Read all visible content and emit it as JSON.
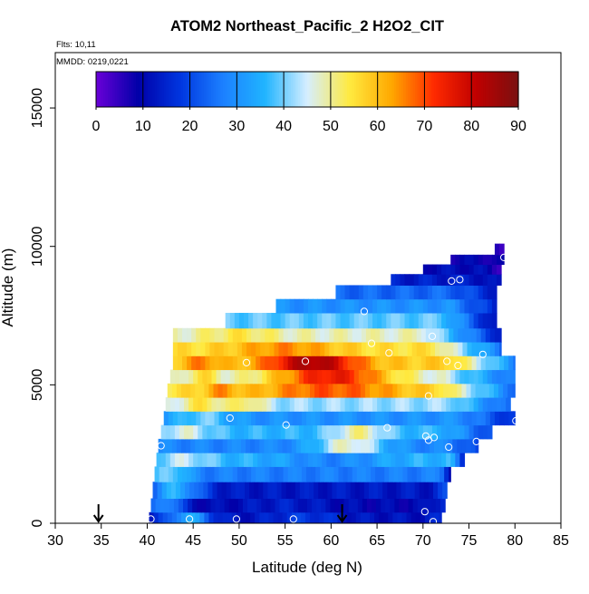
{
  "chart_data": {
    "type": "heatmap",
    "title": "ATOM2 Northeast_Pacific_2 H2O2_CIT",
    "annotations": {
      "flights": "Flts: 10,11",
      "dates": "MMDD: 0219,0221"
    },
    "xlabel": "Latitude (deg N)",
    "ylabel": "Altitude (m)",
    "xlim": [
      30,
      85
    ],
    "ylim": [
      0,
      17000
    ],
    "x_ticks": [
      30,
      35,
      40,
      45,
      50,
      55,
      60,
      65,
      70,
      75,
      80,
      85
    ],
    "y_ticks": [
      0,
      5000,
      10000,
      15000
    ],
    "colorbar": {
      "range": [
        0,
        90
      ],
      "ticks": [
        0,
        10,
        20,
        30,
        40,
        50,
        60,
        70,
        80,
        90
      ],
      "colors": [
        "#6a00d8",
        "#0000a8",
        "#0036e0",
        "#1c80ff",
        "#20b4ff",
        "#d6eeff",
        "#ffea40",
        "#ffa800",
        "#ff2a00",
        "#c00000",
        "#7a1010"
      ]
    },
    "arrow_latitudes": [
      34.7,
      61.2
    ],
    "bands": [
      {
        "alt": [
          0,
          400
        ],
        "lat": [
          40.2,
          72.0
        ],
        "base": 12,
        "bumps": [
          [
            44.5,
            22,
            2.5
          ],
          [
            57,
            6,
            4
          ]
        ],
        "tail": [
          70,
          15
        ]
      },
      {
        "alt": [
          400,
          900
        ],
        "lat": [
          40.4,
          72.4
        ],
        "base": 10,
        "bumps": [
          [
            42,
            20,
            2
          ],
          [
            55,
            4,
            5
          ]
        ],
        "tail": [
          70,
          18
        ]
      },
      {
        "alt": [
          900,
          1500
        ],
        "lat": [
          40.6,
          72.6
        ],
        "base": 13,
        "bumps": [
          [
            43,
            22,
            3
          ]
        ],
        "tail": [
          71,
          20
        ]
      },
      {
        "alt": [
          1500,
          2050
        ],
        "lat": [
          40.8,
          73.0
        ],
        "base": 27,
        "bumps": [
          [
            42.5,
            14,
            2
          ]
        ],
        "tail": [
          72,
          12
        ]
      },
      {
        "alt": [
          2050,
          2550
        ],
        "lat": [
          41.0,
          74.5
        ],
        "base": 36,
        "bumps": [
          [
            44,
            8,
            3
          ],
          [
            60,
            -8,
            6
          ]
        ],
        "tail": [
          73,
          14
        ]
      },
      {
        "alt": [
          2550,
          3050
        ],
        "lat": [
          41.2,
          76.0
        ],
        "base": 28,
        "bumps": [
          [
            62,
            20,
            4
          ]
        ],
        "tail": [
          73,
          18
        ]
      },
      {
        "alt": [
          3050,
          3550
        ],
        "lat": [
          41.5,
          77.5
        ],
        "base": 36,
        "bumps": [
          [
            44,
            10,
            3
          ],
          [
            63,
            14,
            3
          ]
        ],
        "tail": [
          72,
          20
        ]
      },
      {
        "alt": [
          3550,
          4050
        ],
        "lat": [
          41.8,
          80.0
        ],
        "base": 30,
        "bumps": [
          [
            46,
            10,
            3
          ]
        ],
        "tail": [
          74,
          16
        ]
      },
      {
        "alt": [
          4050,
          4550
        ],
        "lat": [
          42.0,
          79.5
        ],
        "base": 42,
        "bumps": [
          [
            46,
            12,
            3
          ],
          [
            51,
            10,
            2
          ]
        ],
        "tail": [
          73,
          22
        ]
      },
      {
        "alt": [
          4550,
          5050
        ],
        "lat": [
          42.2,
          80.0
        ],
        "base": 55,
        "bumps": [
          [
            60,
            14,
            8
          ],
          [
            48,
            8,
            2
          ]
        ],
        "tail": [
          72,
          25
        ]
      },
      {
        "alt": [
          5050,
          5550
        ],
        "lat": [
          42.5,
          80.0
        ],
        "base": 45,
        "bumps": [
          [
            60,
            30,
            7
          ],
          [
            46,
            10,
            2
          ]
        ],
        "tail": [
          72,
          25
        ]
      },
      {
        "alt": [
          5550,
          6050
        ],
        "lat": [
          42.8,
          80.0
        ],
        "base": 58,
        "bumps": [
          [
            58,
            26,
            5
          ],
          [
            46,
            8,
            2
          ]
        ],
        "tail": [
          73,
          28
        ]
      },
      {
        "alt": [
          6050,
          6550
        ],
        "lat": [
          42.8,
          78.5
        ],
        "base": 55,
        "bumps": [
          [
            55,
            10,
            6
          ]
        ],
        "tail": [
          71,
          25
        ]
      },
      {
        "alt": [
          6550,
          7050
        ],
        "lat": [
          42.8,
          78.5
        ],
        "base": 48,
        "bumps": [
          [
            50,
            6,
            4
          ]
        ],
        "tail": [
          70,
          14
        ]
      },
      {
        "alt": [
          7050,
          7600
        ],
        "lat": [
          48.5,
          78.0
        ],
        "base": 39,
        "bumps": [],
        "tail": [
          72,
          10
        ]
      },
      {
        "alt": [
          7600,
          8100
        ],
        "lat": [
          54.0,
          78.0
        ],
        "base": 30,
        "bumps": [],
        "tail": [
          73,
          14
        ]
      },
      {
        "alt": [
          8100,
          8600
        ],
        "lat": [
          60.5,
          78.0
        ],
        "base": 24,
        "bumps": [],
        "tail": [
          73,
          14
        ]
      },
      {
        "alt": [
          8600,
          9000
        ],
        "lat": [
          66.5,
          78.5
        ],
        "base": 14,
        "bumps": [],
        "tail": [
          75,
          10
        ]
      },
      {
        "alt": [
          9000,
          9350
        ],
        "lat": [
          70.0,
          78.5
        ],
        "base": 11,
        "bumps": [],
        "tail": [
          76,
          6
        ]
      },
      {
        "alt": [
          9350,
          9700
        ],
        "lat": [
          73.0,
          78.8
        ],
        "base": 9,
        "bumps": [],
        "tail": [
          77,
          6
        ]
      },
      {
        "alt": [
          9700,
          10100
        ],
        "lat": [
          77.8,
          78.8
        ],
        "base": 5,
        "bumps": [],
        "tail": [
          79,
          0
        ]
      }
    ],
    "points": [
      [
        40.4,
        150
      ],
      [
        44.6,
        150
      ],
      [
        49.7,
        150
      ],
      [
        55.9,
        150
      ],
      [
        70.2,
        420
      ],
      [
        71.1,
        60
      ],
      [
        41.5,
        2800
      ],
      [
        72.8,
        2750
      ],
      [
        75.8,
        2950
      ],
      [
        70.3,
        3150
      ],
      [
        71.2,
        3100
      ],
      [
        70.6,
        3000
      ],
      [
        66.1,
        3450
      ],
      [
        55.1,
        3550
      ],
      [
        49.0,
        3800
      ],
      [
        80.1,
        3700
      ],
      [
        70.6,
        4600
      ],
      [
        50.8,
        5800
      ],
      [
        57.2,
        5850
      ],
      [
        72.6,
        5850
      ],
      [
        73.8,
        5700
      ],
      [
        66.3,
        6150
      ],
      [
        76.5,
        6100
      ],
      [
        64.4,
        6500
      ],
      [
        71.0,
        6750
      ],
      [
        63.6,
        7650
      ],
      [
        73.1,
        8750
      ],
      [
        74.0,
        8800
      ],
      [
        78.8,
        9600
      ]
    ]
  }
}
